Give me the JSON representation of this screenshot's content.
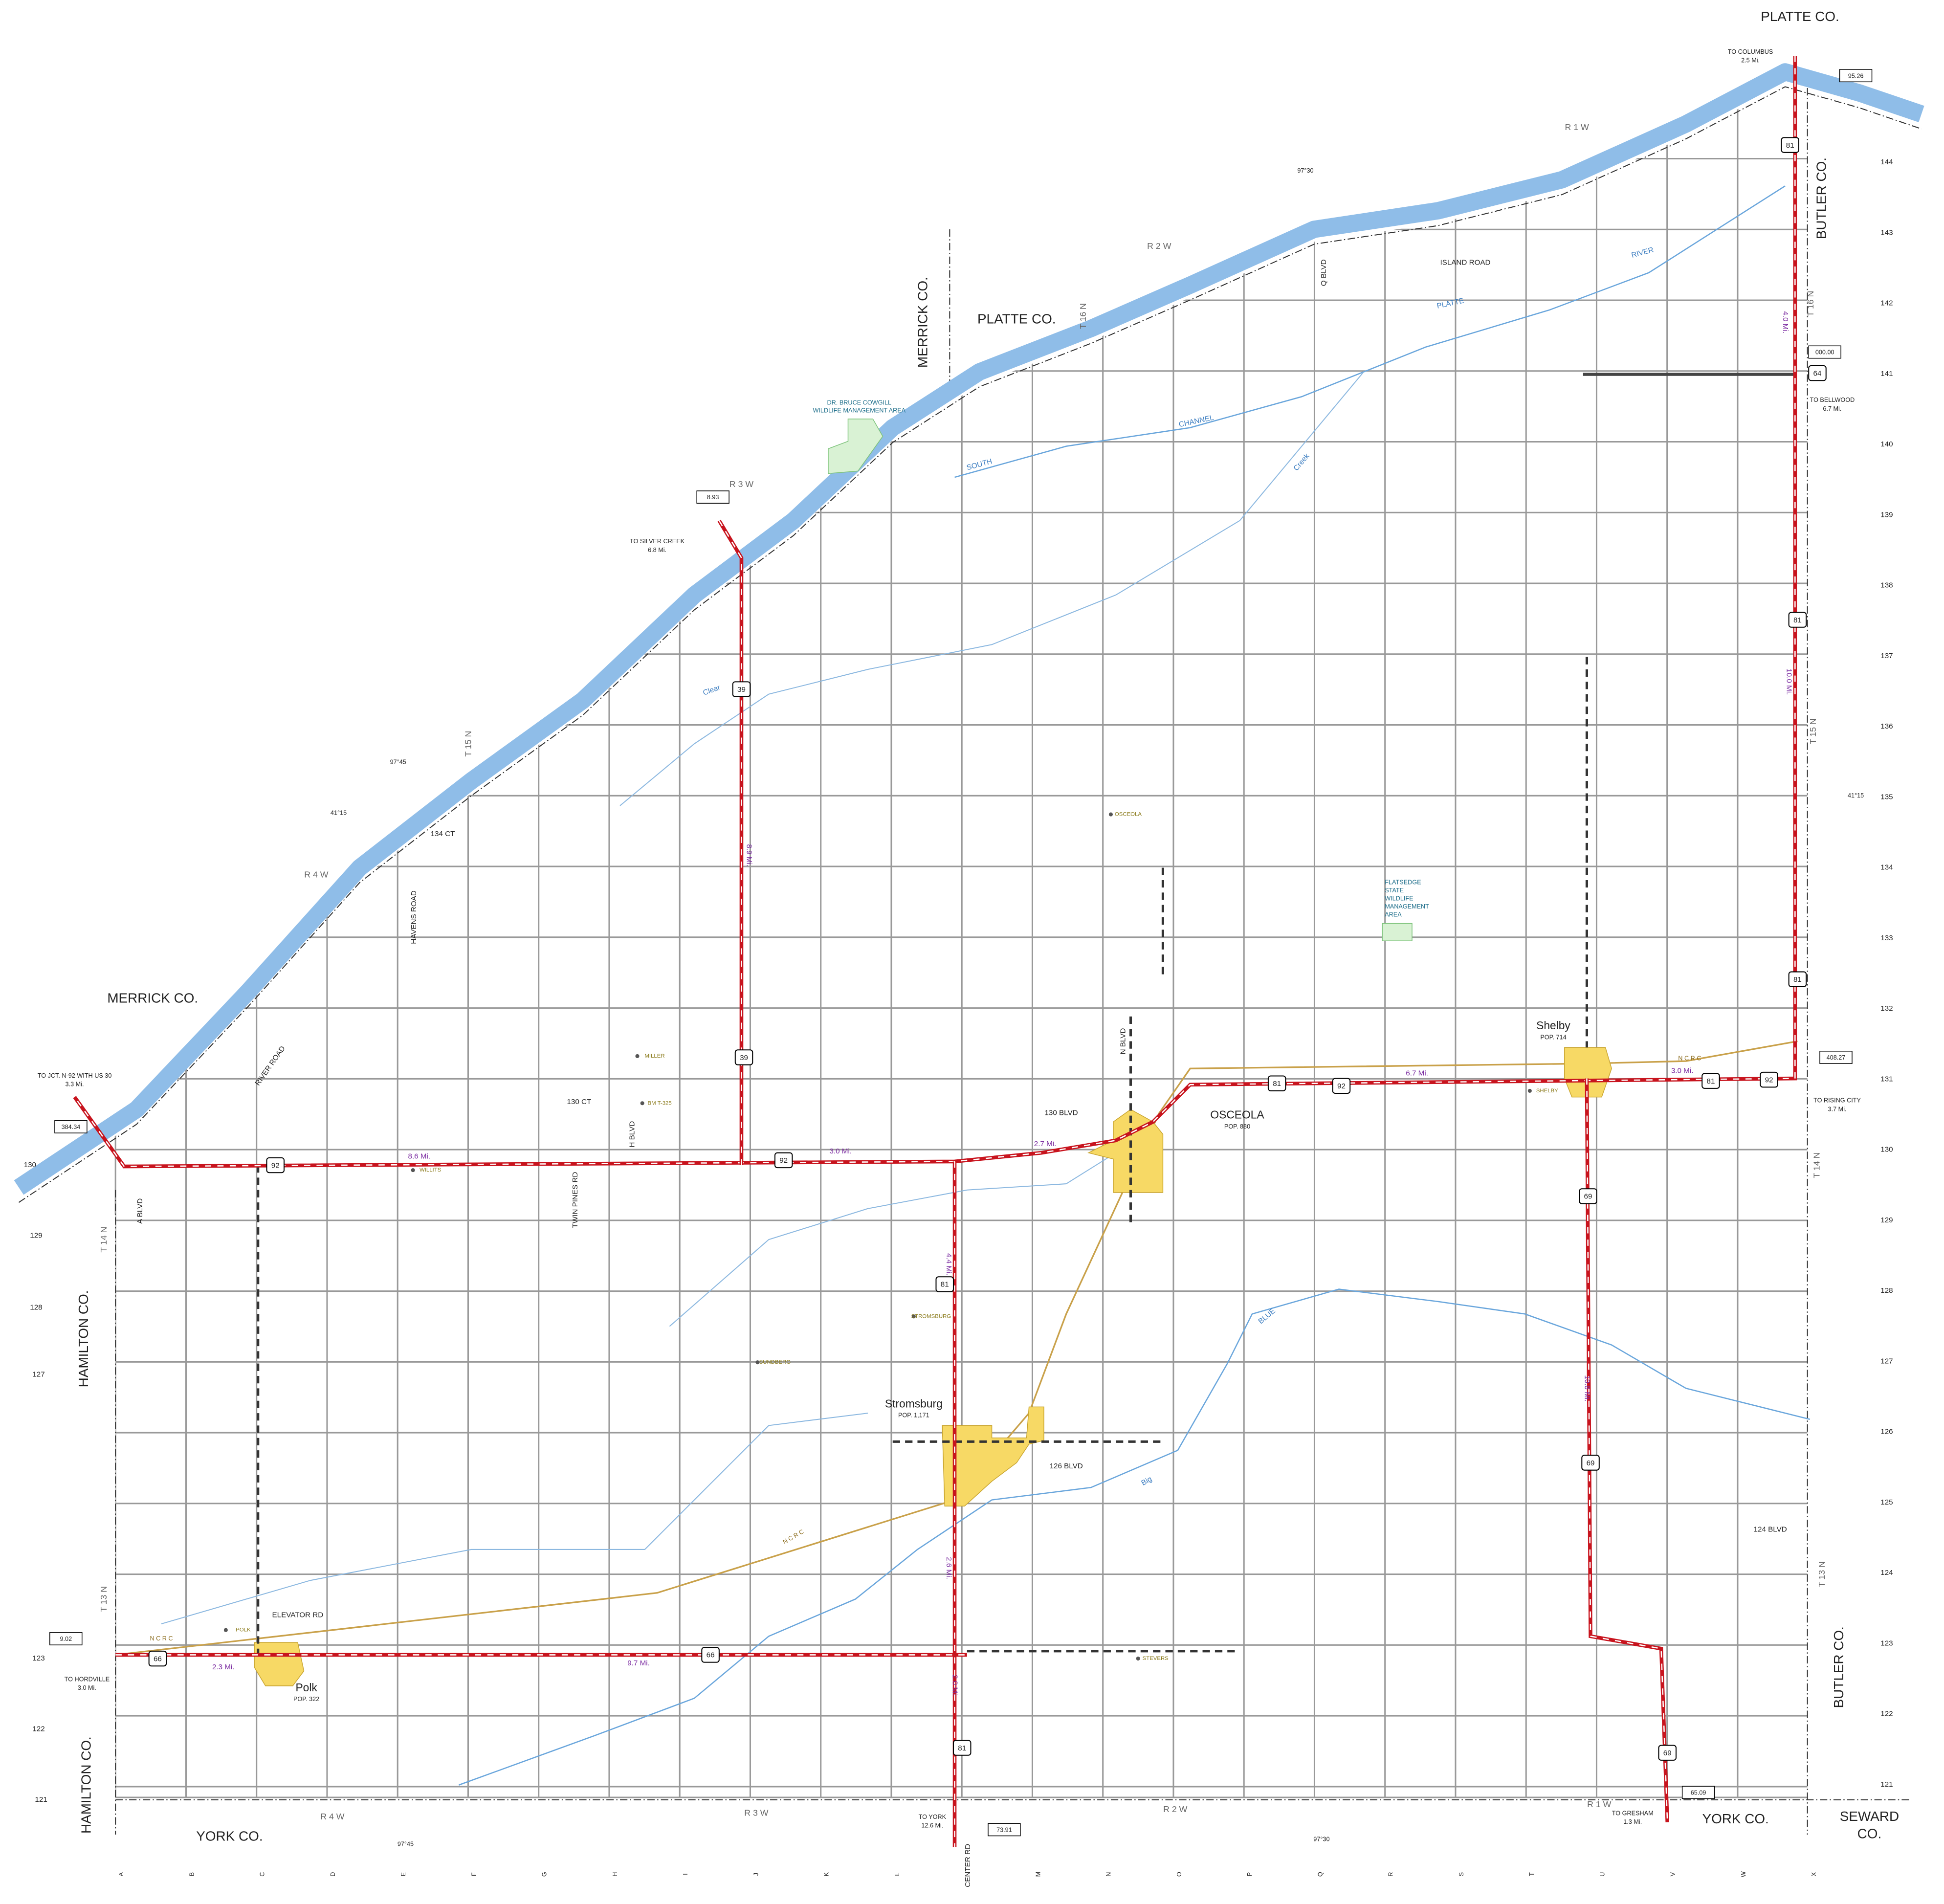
{
  "counties": [
    "PLATTE CO.",
    "BUTLER CO.",
    "MERRICK CO.",
    "PLATTE CO.",
    "MERRICK CO.",
    "HAMILTON CO.",
    "HAMILTON CO.",
    "YORK CO.",
    "YORK CO.",
    "SEWARD",
    "CO.",
    "BUTLER CO."
  ],
  "towns": [
    {
      "name": "Stromsburg",
      "population": "POP. 1,171"
    },
    {
      "name": "Polk",
      "population": "POP. 322"
    },
    {
      "name": "Shelby",
      "population": "POP. 714"
    },
    {
      "name": "OSCEOLA",
      "population": "POP. 880"
    }
  ],
  "roads": [
    "ISLAND ROAD",
    "Q BLVD",
    "134 CT",
    "HAVENS ROAD",
    "RIVER ROAD",
    "130 CT",
    "H BLVD",
    "TWIN PINES RD",
    "A BLVD",
    "130 BLVD",
    "N BLVD",
    "126 BLVD",
    "124 BLVD",
    "ELEVATOR RD"
  ],
  "routes": [
    "81",
    "81",
    "81",
    "81",
    "81",
    "81",
    "81",
    "92",
    "92",
    "92",
    "92",
    "39",
    "39",
    "64",
    "69",
    "69",
    "69",
    "66",
    "66"
  ],
  "destinations": [
    {
      "to": "TO COLUMBUS",
      "distance": "2.5 Mi."
    },
    {
      "to": "TO BELLWOOD",
      "distance": "6.7 Mi."
    },
    {
      "to": "TO SILVER CREEK",
      "distance": "6.8 Mi."
    },
    {
      "to": "TO JCT. N-92 WITH US 30",
      "distance": "3.3 Mi."
    },
    {
      "to": "TO RISING CITY",
      "distance": "3.7 Mi."
    },
    {
      "to": "TO HORDVILLE",
      "distance": "3.0 Mi."
    },
    {
      "to": "TO YORK",
      "distance": "12.6 Mi."
    },
    {
      "to": "TO GRESHAM",
      "distance": "1.3 Mi."
    }
  ],
  "mileposts": [
    "95.26",
    "000.00",
    "8.93",
    "408.27",
    "384.34",
    "9.02",
    "73.91",
    "65.09"
  ],
  "distances": [
    "4.0 Mi.",
    "8.9 Mi.",
    "10.0 Mi.",
    "8.6 Mi.",
    "3.0 Mi.",
    "2.7 Mi.",
    "6.7 Mi.",
    "3.0 Mi.",
    "4.4 Mi.",
    "10.8 Mi.",
    "2.3 Mi.",
    "9.7 Mi.",
    "2.6 Mi.",
    "2.0 Mi."
  ],
  "wildlife_areas": [
    [
      "DR. BRUCE COWGILL",
      "WILDLIFE MANAGEMENT AREA"
    ],
    [
      "FLATSEDGE",
      "STATE",
      "WILDLIFE",
      "MANAGEMENT",
      "AREA"
    ]
  ],
  "ranges": [
    "R 1 W",
    "R 2 W",
    "R 3 W",
    "R 4 W",
    "R 4 W",
    "R 3 W",
    "R 2 W",
    "R 1 W"
  ],
  "townships": [
    "T 16 N",
    "T 16 N",
    "T 15 N",
    "T 15 N",
    "T 14 N",
    "T 14 N",
    "T 13 N",
    "T 13 N"
  ],
  "coordinates": [
    "97°30",
    "97°45",
    "41°15",
    "41°15",
    "97°45",
    "97°30"
  ],
  "columns": [
    "A",
    "B",
    "C",
    "D",
    "E",
    "F",
    "G",
    "H",
    "I",
    "J",
    "K",
    "L",
    "CENTER RD",
    "M",
    "N",
    "O",
    "P",
    "Q",
    "R",
    "S",
    "T",
    "U",
    "V",
    "W",
    "X"
  ],
  "rows_right": [
    "144",
    "143",
    "142",
    "141",
    "140",
    "139",
    "138",
    "137",
    "136",
    "135",
    "134",
    "133",
    "132",
    "131",
    "130",
    "129",
    "128",
    "127",
    "126",
    "125",
    "124",
    "123",
    "122",
    "121"
  ],
  "rows_left": [
    "130",
    "129",
    "128",
    "127",
    "123",
    "122",
    "121"
  ],
  "places": [
    "MILLER",
    "OSCEOLA",
    "STROMSBURG",
    "SUNDBERG",
    "SHELBY",
    "STEVERS",
    "POLK",
    "WILLITS",
    "BM T-325"
  ],
  "water": [
    "PLATTE",
    "RIVER",
    "SOUTH",
    "CHANNEL",
    "Clear",
    "Creek",
    "BLUE",
    "Big"
  ],
  "railroad": [
    "N C R C",
    "N C R C",
    "N C R C"
  ]
}
